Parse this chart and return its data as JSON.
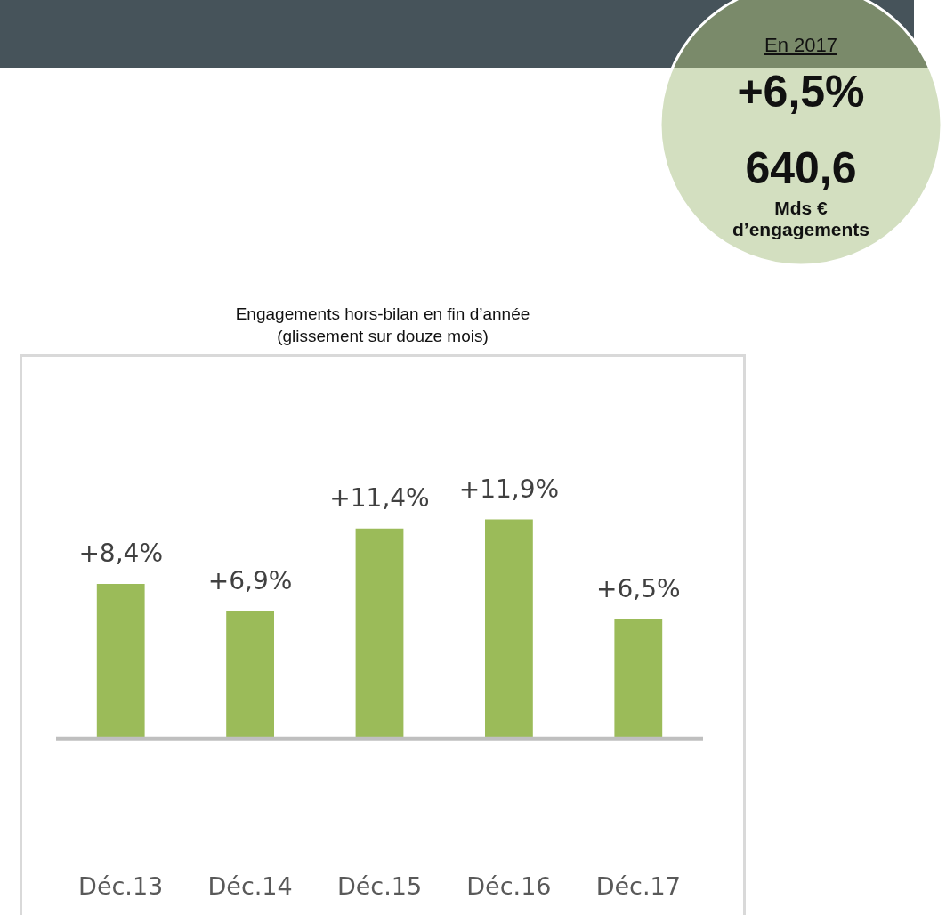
{
  "chart_data": {
    "type": "bar",
    "title": "Engagements hors-bilan en fin d’année",
    "subtitle": "(glissement sur douze mois)",
    "categories": [
      "Déc.13",
      "Déc.14",
      "Déc.15",
      "Déc.16",
      "Déc.17"
    ],
    "values": [
      8.4,
      6.9,
      11.4,
      11.9,
      6.5
    ],
    "value_labels": [
      "+8,4%",
      "+6,9%",
      "+11,4%",
      "+11,9%",
      "+6,5%"
    ],
    "color": "#9bbb59",
    "grid": false,
    "legend": false,
    "annotations": [
      "En 2017",
      "+6,5%",
      "640,6",
      "Mds €",
      "d’engagements"
    ]
  }
}
